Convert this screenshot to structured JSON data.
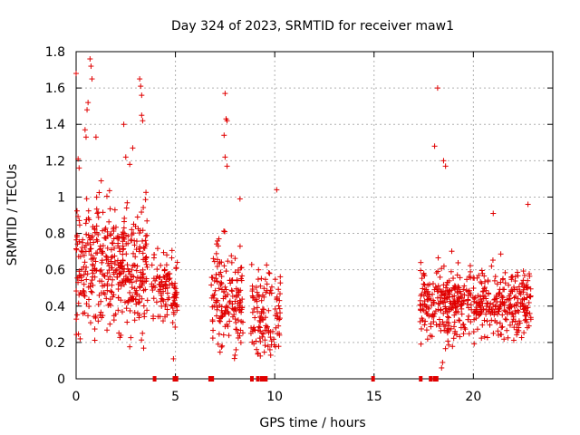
{
  "chart_data": {
    "type": "scatter",
    "title": "Day 324 of 2023, SRMTID for receiver maw1",
    "xlabel": "GPS time / hours",
    "ylabel": "SRMTID / TECUs",
    "xlim": [
      0,
      24
    ],
    "ylim": [
      0,
      1.8
    ],
    "x_ticks": [
      0,
      5,
      10,
      15,
      20
    ],
    "x_tick_labels": [
      "0",
      "5",
      "10",
      "15",
      "20"
    ],
    "y_ticks": [
      0,
      0.2,
      0.4,
      0.6,
      0.8,
      1.0,
      1.2,
      1.4,
      1.6,
      1.8
    ],
    "y_tick_labels": [
      "0",
      "0.2",
      "0.4",
      "0.6",
      "0.8",
      "1",
      "1.2",
      "1.4",
      "1.6",
      "1.8"
    ],
    "grid": true,
    "marker": "+",
    "color": "#e00000",
    "clusters": [
      {
        "x_range": [
          0.0,
          3.6
        ],
        "mean": 0.62,
        "spread": 0.22,
        "count": 420
      },
      {
        "x_range": [
          3.8,
          5.1
        ],
        "mean": 0.48,
        "spread": 0.12,
        "count": 110
      },
      {
        "x_range": [
          6.8,
          8.4
        ],
        "mean": 0.45,
        "spread": 0.18,
        "count": 160
      },
      {
        "x_range": [
          8.8,
          10.3
        ],
        "mean": 0.35,
        "spread": 0.14,
        "count": 120
      },
      {
        "x_range": [
          17.3,
          22.9
        ],
        "mean": 0.42,
        "spread": 0.12,
        "count": 520
      }
    ],
    "outliers": [
      {
        "x": 0.7,
        "y": 1.76
      },
      {
        "x": 0.75,
        "y": 1.72
      },
      {
        "x": 0.8,
        "y": 1.65
      },
      {
        "x": 0.0,
        "y": 1.68
      },
      {
        "x": 0.6,
        "y": 1.52
      },
      {
        "x": 0.55,
        "y": 1.48
      },
      {
        "x": 3.2,
        "y": 1.65
      },
      {
        "x": 3.25,
        "y": 1.61
      },
      {
        "x": 3.3,
        "y": 1.56
      },
      {
        "x": 2.4,
        "y": 1.4
      },
      {
        "x": 3.3,
        "y": 1.45
      },
      {
        "x": 3.35,
        "y": 1.42
      },
      {
        "x": 7.5,
        "y": 1.57
      },
      {
        "x": 7.55,
        "y": 1.43
      },
      {
        "x": 7.6,
        "y": 1.42
      },
      {
        "x": 7.45,
        "y": 1.34
      },
      {
        "x": 7.5,
        "y": 1.22
      },
      {
        "x": 7.6,
        "y": 1.17
      },
      {
        "x": 18.2,
        "y": 1.6
      },
      {
        "x": 18.05,
        "y": 1.28
      },
      {
        "x": 18.5,
        "y": 1.2
      },
      {
        "x": 18.6,
        "y": 1.17
      },
      {
        "x": 0.1,
        "y": 1.21
      },
      {
        "x": 0.15,
        "y": 1.16
      },
      {
        "x": 0.5,
        "y": 1.33
      },
      {
        "x": 0.45,
        "y": 1.37
      },
      {
        "x": 1.0,
        "y": 1.33
      },
      {
        "x": 2.5,
        "y": 1.22
      },
      {
        "x": 2.7,
        "y": 1.18
      },
      {
        "x": 2.85,
        "y": 1.27
      },
      {
        "x": 8.0,
        "y": 0.13
      },
      {
        "x": 8.05,
        "y": 0.16
      },
      {
        "x": 18.4,
        "y": 0.06
      },
      {
        "x": 18.45,
        "y": 0.09
      },
      {
        "x": 4.9,
        "y": 0.11
      },
      {
        "x": 10.1,
        "y": 1.04
      },
      {
        "x": 22.75,
        "y": 0.96
      },
      {
        "x": 21.0,
        "y": 0.91
      },
      {
        "x": 8.25,
        "y": 0.99
      }
    ],
    "zero_markers_x": [
      3.95,
      4.95,
      5.05,
      6.75,
      6.85,
      8.85,
      9.15,
      9.35,
      9.45,
      9.55,
      14.95,
      17.35,
      17.85,
      18.05,
      18.15
    ]
  }
}
